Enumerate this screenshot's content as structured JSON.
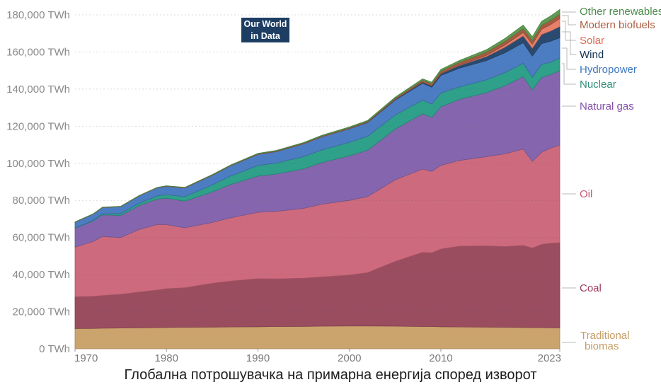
{
  "logo": {
    "line1": "Our World",
    "line2": "in Data"
  },
  "title": "Глобална потрошувачка на примарна енергија според изворот",
  "axis": {
    "y_tick_labels": [
      "0 TWh",
      "20,000 TWh",
      "40,000 TWh",
      "60,000 TWh",
      "80,000 TWh",
      "100,000 TWh",
      "120,000 TWh",
      "140,000 TWh",
      "160,000 TWh",
      "180,000 TWh"
    ],
    "x_tick_labels": [
      "1970",
      "1980",
      "1990",
      "2000",
      "2010",
      "2023"
    ]
  },
  "chart_data": {
    "type": "area",
    "stacked": true,
    "title": "Глобална потрошувачка на примарна енергија според изворот",
    "xlabel": "",
    "ylabel": "",
    "unit": "TWh",
    "xlim": [
      1970,
      2023
    ],
    "ylim": [
      0,
      180000
    ],
    "grid": true,
    "legend_position": "right",
    "x": [
      1970,
      1972,
      1973,
      1975,
      1977,
      1979,
      1980,
      1982,
      1985,
      1987,
      1990,
      1992,
      1995,
      1997,
      2000,
      2002,
      2005,
      2008,
      2009,
      2010,
      2012,
      2015,
      2017,
      2019,
      2020,
      2021,
      2022,
      2023
    ],
    "xticks": [
      1970,
      1980,
      1990,
      2000,
      2010,
      2023
    ],
    "yticks": [
      0,
      20000,
      40000,
      60000,
      80000,
      100000,
      120000,
      140000,
      160000,
      180000
    ],
    "series": [
      {
        "name": "Traditional biomas",
        "color": "#CBA36C",
        "text_color": "#C59D66",
        "values": [
          10900,
          11000,
          11100,
          11200,
          11300,
          11400,
          11500,
          11600,
          11700,
          11800,
          11900,
          12000,
          12100,
          12200,
          12300,
          12300,
          12200,
          12000,
          12000,
          11900,
          11800,
          11700,
          11600,
          11500,
          11400,
          11400,
          11300,
          11300
        ]
      },
      {
        "name": "Coal",
        "color": "#9B4D60",
        "text_color": "#9E3A5D",
        "values": [
          17100,
          17300,
          17600,
          18200,
          19300,
          20300,
          20900,
          21300,
          23600,
          24700,
          25900,
          25700,
          26000,
          26600,
          27400,
          28800,
          34900,
          40000,
          39700,
          41900,
          43500,
          43800,
          43500,
          44200,
          42900,
          44900,
          45600,
          45900
        ]
      },
      {
        "name": "Oil",
        "color": "#CE6A7D",
        "text_color": "#C75B72",
        "values": [
          26800,
          29600,
          31900,
          30600,
          33700,
          35300,
          34600,
          32300,
          32800,
          34100,
          35800,
          36400,
          37600,
          39200,
          40300,
          41000,
          44000,
          44900,
          43900,
          45100,
          46200,
          48100,
          50000,
          52000,
          46700,
          49600,
          51300,
          52600
        ]
      },
      {
        "name": "Natural gas",
        "color": "#8566AE",
        "text_color": "#8450A8",
        "values": [
          10100,
          11000,
          11600,
          11900,
          12800,
          13700,
          14200,
          14400,
          16400,
          17900,
          19500,
          20100,
          21300,
          22400,
          24000,
          25000,
          27300,
          29800,
          29100,
          31600,
          32900,
          34500,
          36700,
          39000,
          38500,
          40300,
          39600,
          40100
        ]
      },
      {
        "name": "Nuclear",
        "color": "#2FA08A",
        "text_color": "#2E8E78",
        "values": [
          220,
          400,
          550,
          1000,
          1300,
          1700,
          1900,
          2400,
          3900,
          4600,
          5700,
          5900,
          6600,
          6800,
          7300,
          7500,
          7600,
          7400,
          7200,
          7400,
          6700,
          6900,
          7100,
          7200,
          6900,
          7100,
          6700,
          6800
        ]
      },
      {
        "name": "Hydropower",
        "color": "#4C7CC2",
        "text_color": "#3D77C0",
        "values": [
          3100,
          3300,
          3400,
          3700,
          4000,
          4400,
          4500,
          4700,
          5100,
          5500,
          6000,
          6200,
          6900,
          7100,
          7300,
          7400,
          8100,
          9000,
          9100,
          9500,
          10100,
          10400,
          10700,
          11100,
          11400,
          11200,
          11300,
          11000
        ]
      },
      {
        "name": "Wind",
        "color": "#2B4A6F",
        "text_color": "#143352",
        "values": [
          0,
          0,
          0,
          0,
          0,
          0,
          0,
          0,
          0,
          0,
          10,
          15,
          20,
          40,
          90,
          140,
          280,
          600,
          750,
          900,
          1400,
          2200,
          3000,
          3700,
          4200,
          4900,
          5500,
          6000
        ]
      },
      {
        "name": "Solar",
        "color": "#E8806B",
        "text_color": "#E06B52",
        "values": [
          0,
          0,
          0,
          0,
          0,
          0,
          0,
          0,
          0,
          0,
          1,
          1,
          2,
          2,
          3,
          5,
          10,
          30,
          50,
          90,
          250,
          670,
          1200,
          1800,
          2200,
          2800,
          3500,
          4300
        ]
      },
      {
        "name": "Modern biofuels",
        "color": "#A65B41",
        "text_color": "#AD5F45",
        "values": [
          100,
          100,
          100,
          110,
          120,
          130,
          140,
          160,
          200,
          220,
          250,
          270,
          300,
          350,
          400,
          450,
          600,
          1000,
          1100,
          1300,
          1500,
          1700,
          1900,
          2100,
          2000,
          2200,
          2300,
          2400
        ]
      },
      {
        "name": "Other renewables",
        "color": "#5E9C53",
        "text_color": "#4C8A49",
        "values": [
          90,
          100,
          110,
          120,
          130,
          150,
          160,
          180,
          210,
          250,
          300,
          350,
          400,
          450,
          500,
          550,
          650,
          800,
          850,
          900,
          1000,
          1300,
          1600,
          1900,
          2000,
          2100,
          2300,
          2500
        ]
      }
    ]
  }
}
